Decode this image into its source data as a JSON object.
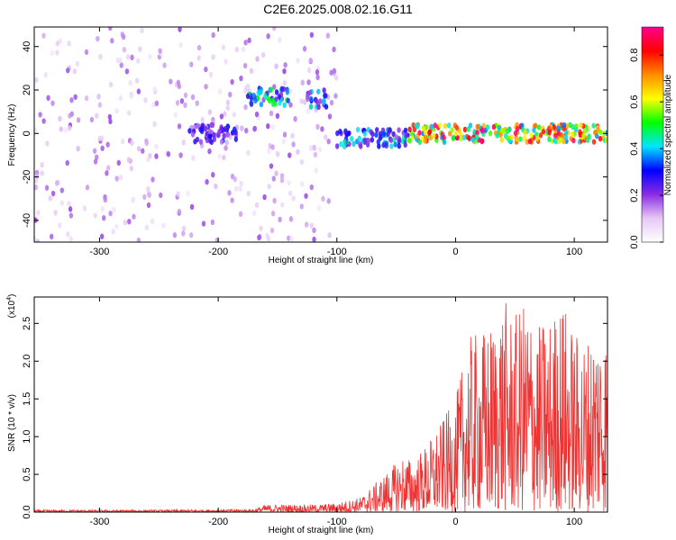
{
  "title": "C2E6.2025.008.02.16.G11",
  "chart_data": [
    {
      "type": "heatmap",
      "title": "C2E6.2025.008.02.16.G11",
      "xlabel": "Height of straight line (km)",
      "ylabel": "Frequency (Hz)",
      "xlim": [
        -355,
        128
      ],
      "ylim": [
        -50,
        49
      ],
      "xticks": [
        -300,
        -200,
        -100,
        0,
        100
      ],
      "yticks": [
        -40,
        -20,
        0,
        20,
        40
      ],
      "colorbar": {
        "label": "Normalized spectral amplitude",
        "range": [
          0.0,
          0.92
        ],
        "ticks": [
          0.0,
          0.2,
          0.4,
          0.6,
          0.8
        ],
        "colors": [
          "#ffffff",
          "#e6c8f5",
          "#8a2be2",
          "#0000ff",
          "#00e5ff",
          "#00ff00",
          "#ffff00",
          "#ff8c00",
          "#ff0000",
          "#ff0090"
        ]
      },
      "features": [
        {
          "x_range": [
            -355,
            -100
          ],
          "y_range": [
            -50,
            49
          ],
          "level": 0.15
        },
        {
          "x_range": [
            -175,
            -140
          ],
          "y_center": 17,
          "level": 0.4
        },
        {
          "x_range": [
            -125,
            -108
          ],
          "y_center": 16,
          "level": 0.35
        },
        {
          "x_range": [
            -225,
            -185
          ],
          "y_center": 0,
          "level": 0.25
        },
        {
          "x_range": [
            -100,
            -40
          ],
          "y_center": -2,
          "level": 0.35
        },
        {
          "x_range": [
            -40,
            128
          ],
          "y_center": 0,
          "level": 0.7
        }
      ]
    },
    {
      "type": "line",
      "xlabel": "Height of straight line (km)",
      "ylabel": "SNR (10 * v/v)",
      "yscale_label": "(x10",
      "yscale_exp": "4",
      "xlim": [
        -355,
        128
      ],
      "ylim": [
        0,
        2.85
      ],
      "xticks": [
        -300,
        -200,
        -100,
        0,
        100
      ],
      "yticks": [
        "0.0",
        "0.5",
        "1.0",
        "1.5",
        "2.0",
        "2.5"
      ],
      "series": [
        {
          "color": "#ee3333",
          "envelope_x": [
            -355,
            -250,
            -170,
            -160,
            -120,
            -100,
            -80,
            -60,
            -45,
            -35,
            -20,
            0,
            10,
            20,
            30,
            40,
            50,
            60,
            70,
            80,
            90,
            100,
            110,
            120,
            128
          ],
          "envelope_y": [
            0.03,
            0.03,
            0.04,
            0.1,
            0.1,
            0.12,
            0.2,
            0.5,
            0.75,
            0.7,
            1.0,
            1.5,
            2.3,
            2.4,
            2.5,
            2.85,
            2.6,
            2.85,
            2.5,
            2.6,
            2.85,
            2.4,
            2.3,
            2.6,
            2.45
          ]
        }
      ]
    }
  ]
}
